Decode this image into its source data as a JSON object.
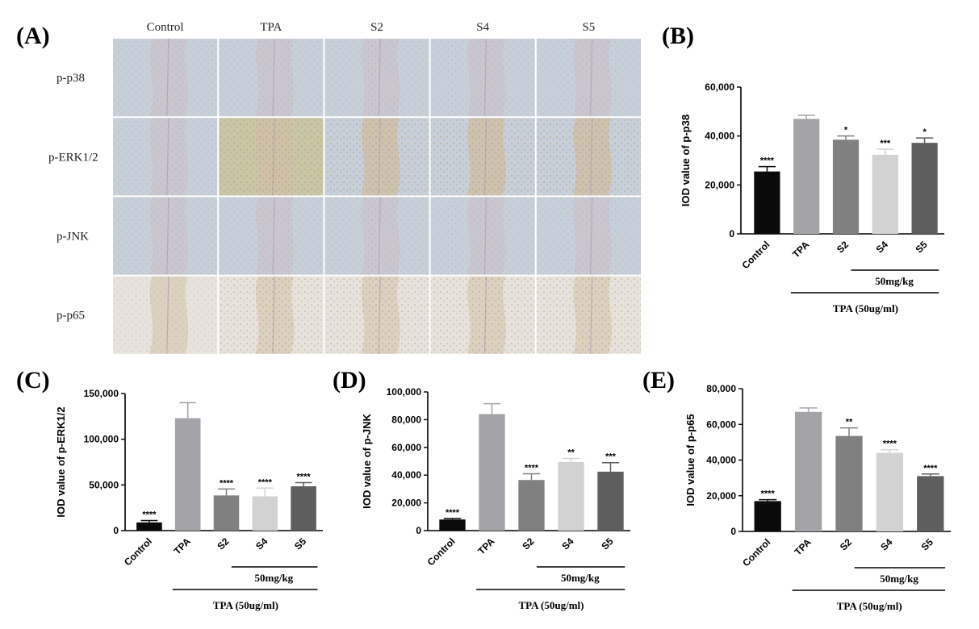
{
  "panel_letters": {
    "a": "(A)",
    "b": "(B)",
    "c": "(C)",
    "d": "(D)",
    "e": "(E)"
  },
  "micrograph": {
    "columns": [
      "Control",
      "TPA",
      "S2",
      "S4",
      "S5"
    ],
    "rows": [
      "p-p38",
      "p-ERK1/2",
      "p-JNK",
      "p-p65"
    ]
  },
  "colors": {
    "control": "#0a0a0a",
    "tpa": "#a3a3a8",
    "s2": "#808080",
    "s4": "#d2d2d2",
    "s5": "#5e5e5e",
    "grid_line": "#ffffff",
    "blue_stain": "#c7cfd8",
    "brown_stain": "#e7e2db"
  },
  "chart_data": [
    {
      "id": "B",
      "type": "bar",
      "ylabel": "IOD value of p-p38",
      "categories": [
        "Control",
        "TPA",
        "S2",
        "S4",
        "S5"
      ],
      "values": [
        25500,
        47000,
        38500,
        32300,
        37200
      ],
      "errors": [
        2000,
        1500,
        1500,
        2300,
        2000
      ],
      "significance": [
        "****",
        "",
        "*",
        "***",
        "*"
      ],
      "yticks": [
        "0",
        "20,000",
        "40,000",
        "60,000"
      ],
      "ylim": [
        0,
        60000
      ],
      "bracket_label": "50mg/kg",
      "group_label": "TPA (50ug/ml)"
    },
    {
      "id": "C",
      "type": "bar",
      "ylabel": "IOD value of p-ERK1/2",
      "categories": [
        "Control",
        "TPA",
        "S2",
        "S4",
        "S5"
      ],
      "values": [
        9000,
        123000,
        38500,
        37500,
        48500
      ],
      "errors": [
        2000,
        17000,
        7000,
        9000,
        4000
      ],
      "significance": [
        "****",
        "",
        "****",
        "****",
        "****"
      ],
      "yticks": [
        "0",
        "50,000",
        "100,000",
        "150,000"
      ],
      "ylim": [
        0,
        150000
      ],
      "bracket_label": "50mg/kg",
      "group_label": "TPA (50ug/ml)"
    },
    {
      "id": "D",
      "type": "bar",
      "ylabel": "IOD value of p-JNK",
      "categories": [
        "Control",
        "TPA",
        "S2",
        "S4",
        "S5"
      ],
      "values": [
        8000,
        84000,
        36500,
        49500,
        42500
      ],
      "errors": [
        700,
        7500,
        4500,
        2500,
        6500
      ],
      "significance": [
        "****",
        "",
        "****",
        "**",
        "***"
      ],
      "yticks": [
        "0",
        "20,000",
        "40,000",
        "60,000",
        "80,000",
        "100,000"
      ],
      "ylim": [
        0,
        100000
      ],
      "bracket_label": "50mg/kg",
      "group_label": "TPA (50ug/ml)"
    },
    {
      "id": "E",
      "type": "bar",
      "ylabel": "IOD value of p-p65",
      "categories": [
        "Control",
        "TPA",
        "S2",
        "S4",
        "S5"
      ],
      "values": [
        17000,
        67000,
        53500,
        44000,
        31000
      ],
      "errors": [
        800,
        2200,
        4500,
        1800,
        1200
      ],
      "significance": [
        "****",
        "",
        "**",
        "****",
        "****"
      ],
      "yticks": [
        "0",
        "20,000",
        "40,000",
        "60,000",
        "80,000"
      ],
      "ylim": [
        0,
        80000
      ],
      "bracket_label": "50mg/kg",
      "group_label": "TPA (50ug/ml)"
    }
  ]
}
